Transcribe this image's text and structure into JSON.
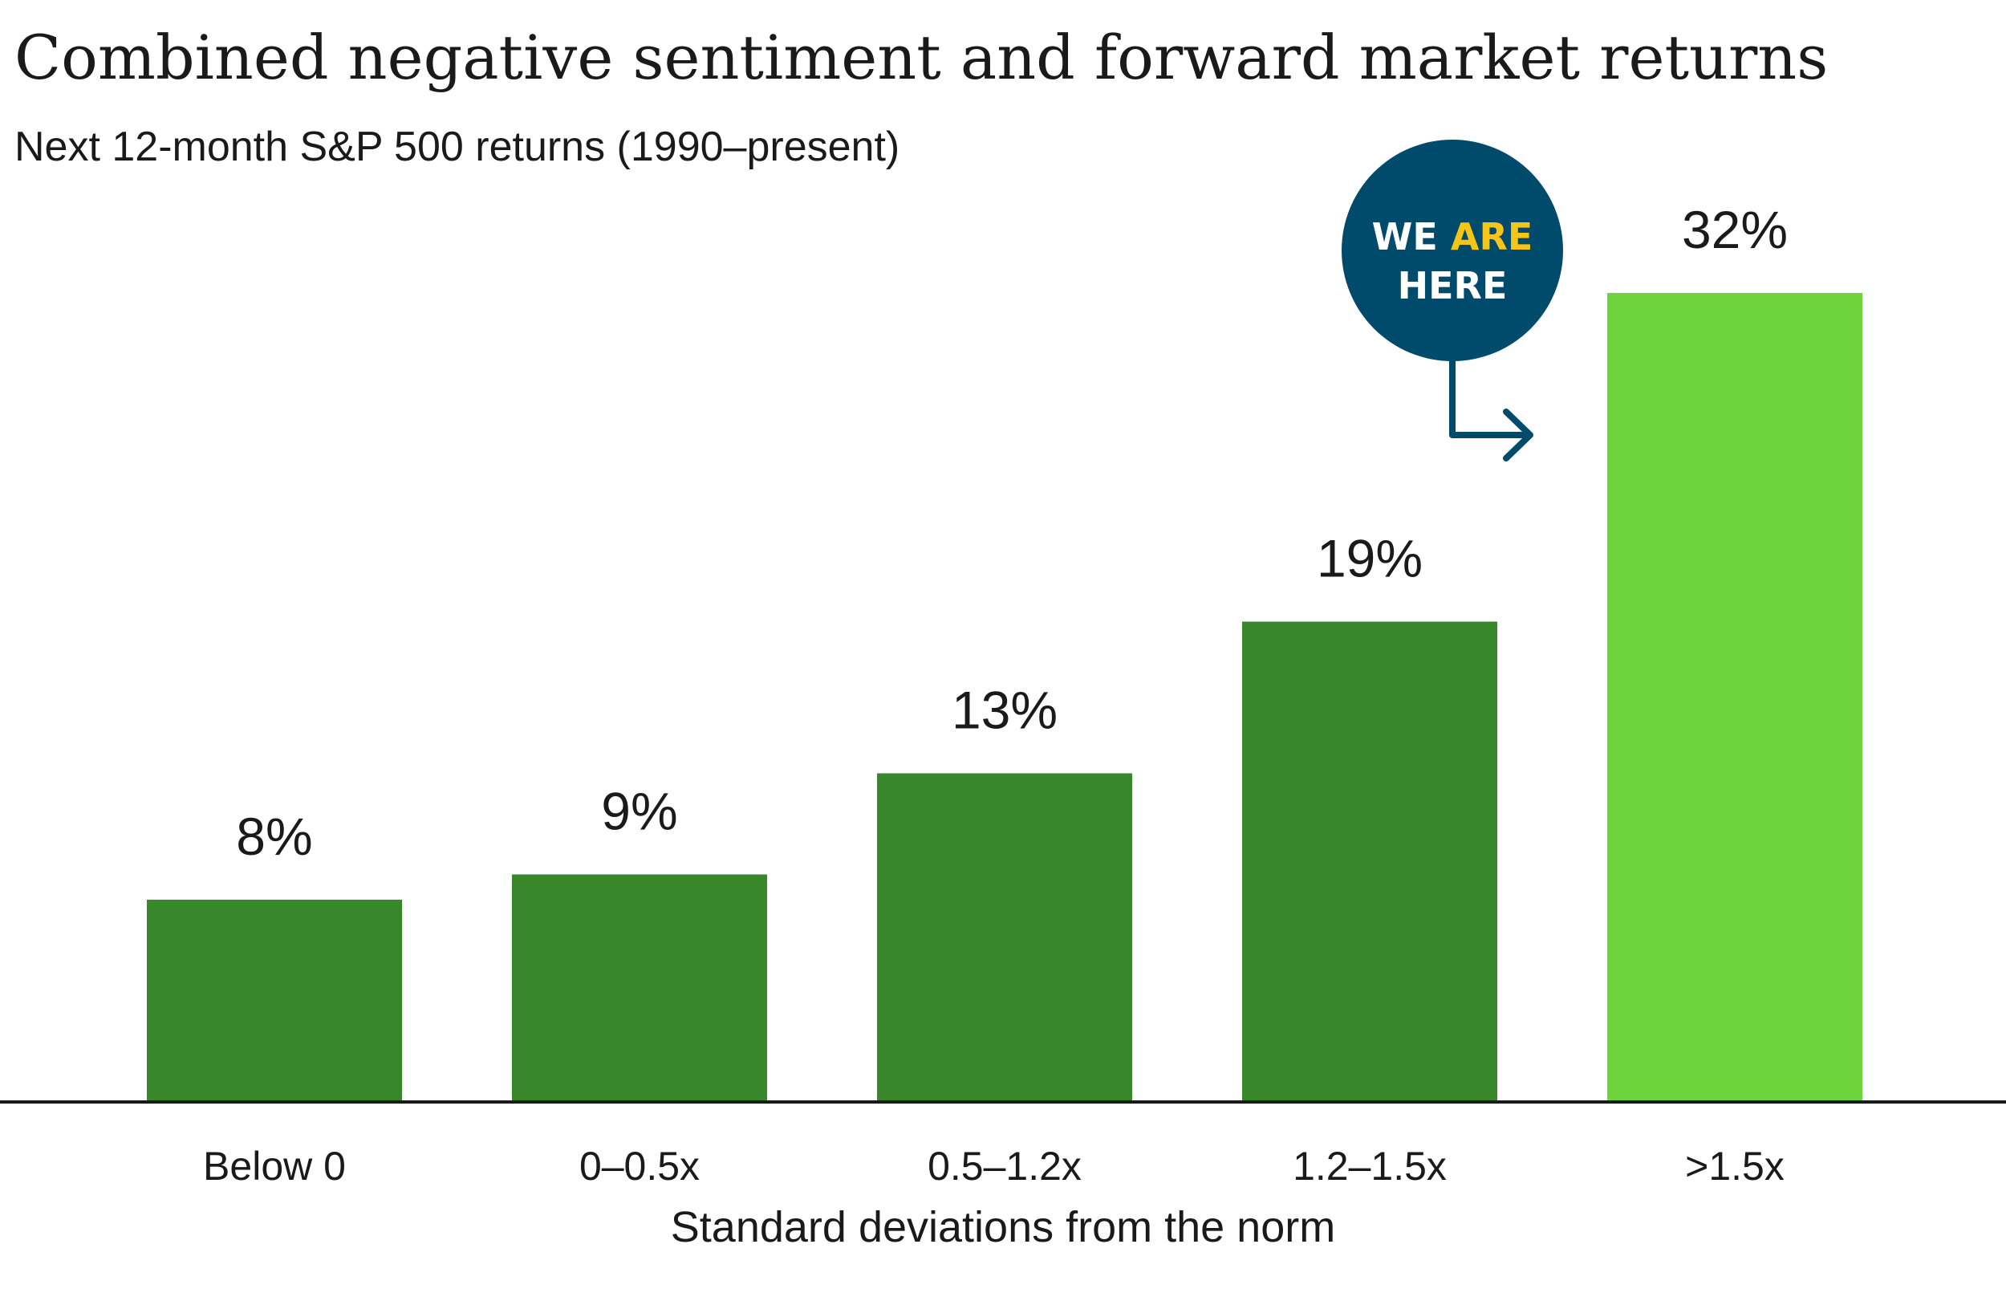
{
  "chart_data": {
    "type": "bar",
    "title": "Combined negative sentiment and forward market returns",
    "subtitle": "Next 12-month S&P 500 returns (1990–present)",
    "xlabel": "Standard deviations from the norm",
    "ylabel": "",
    "categories": [
      "Below 0",
      "0–0.5x",
      "0.5–1.2x",
      "1.2–1.5x",
      ">1.5x"
    ],
    "values": [
      8,
      9,
      13,
      19,
      32
    ],
    "value_labels": [
      "8%",
      "9%",
      "13%",
      "19%",
      "32%"
    ],
    "ylim": [
      0,
      32
    ],
    "grid": false,
    "highlight_index": 4,
    "colors": {
      "bar": "#38882b",
      "highlight_bar": "#6dd43c",
      "callout": "#004b6b",
      "callout_accent": "#f5c518",
      "axis": "#1a1a1a"
    },
    "callout": {
      "word1": "WE",
      "word2": "ARE",
      "word3": "HERE",
      "target_index": 4
    }
  }
}
